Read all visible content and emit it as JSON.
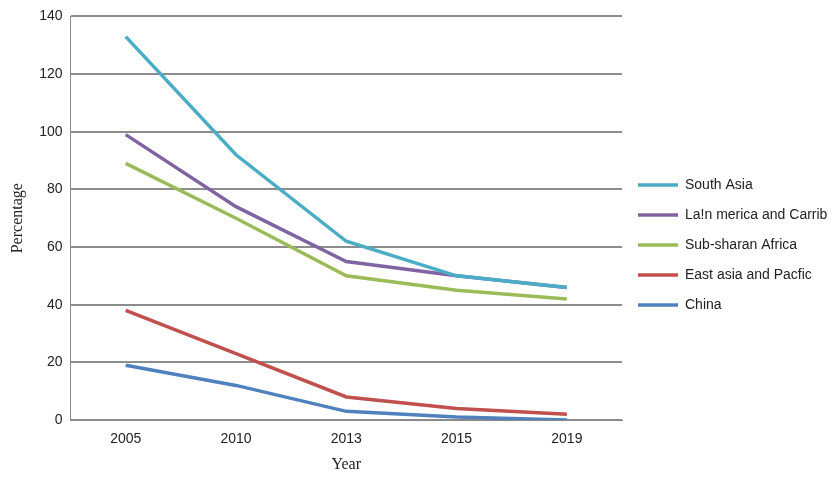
{
  "chart_data": {
    "type": "line",
    "x_label": "Year",
    "y_label": "Percentage",
    "categories": [
      "2005",
      "2010",
      "2013",
      "2015",
      "2019"
    ],
    "series": [
      {
        "name": "South Asia",
        "color": "#4bacc6",
        "values": [
          133,
          92,
          62,
          50,
          46
        ]
      },
      {
        "name": "La!n merica and Carribean",
        "color": "#8064a2",
        "values": [
          99,
          74,
          55,
          50,
          46
        ]
      },
      {
        "name": "Sub-sharan Africa",
        "color": "#9bbb59",
        "values": [
          89,
          70,
          50,
          45,
          42
        ]
      },
      {
        "name": "East asia and Pacfic",
        "color": "#c0504d",
        "values": [
          38,
          23,
          8,
          4,
          2
        ]
      },
      {
        "name": "China",
        "color": "#4f81bd",
        "values": [
          19,
          12,
          3,
          1,
          0
        ]
      }
    ],
    "ylim": [
      0,
      140
    ],
    "yticks": [
      0,
      20,
      40,
      60,
      80,
      100,
      120,
      140
    ],
    "grid": true,
    "legend": "right"
  }
}
